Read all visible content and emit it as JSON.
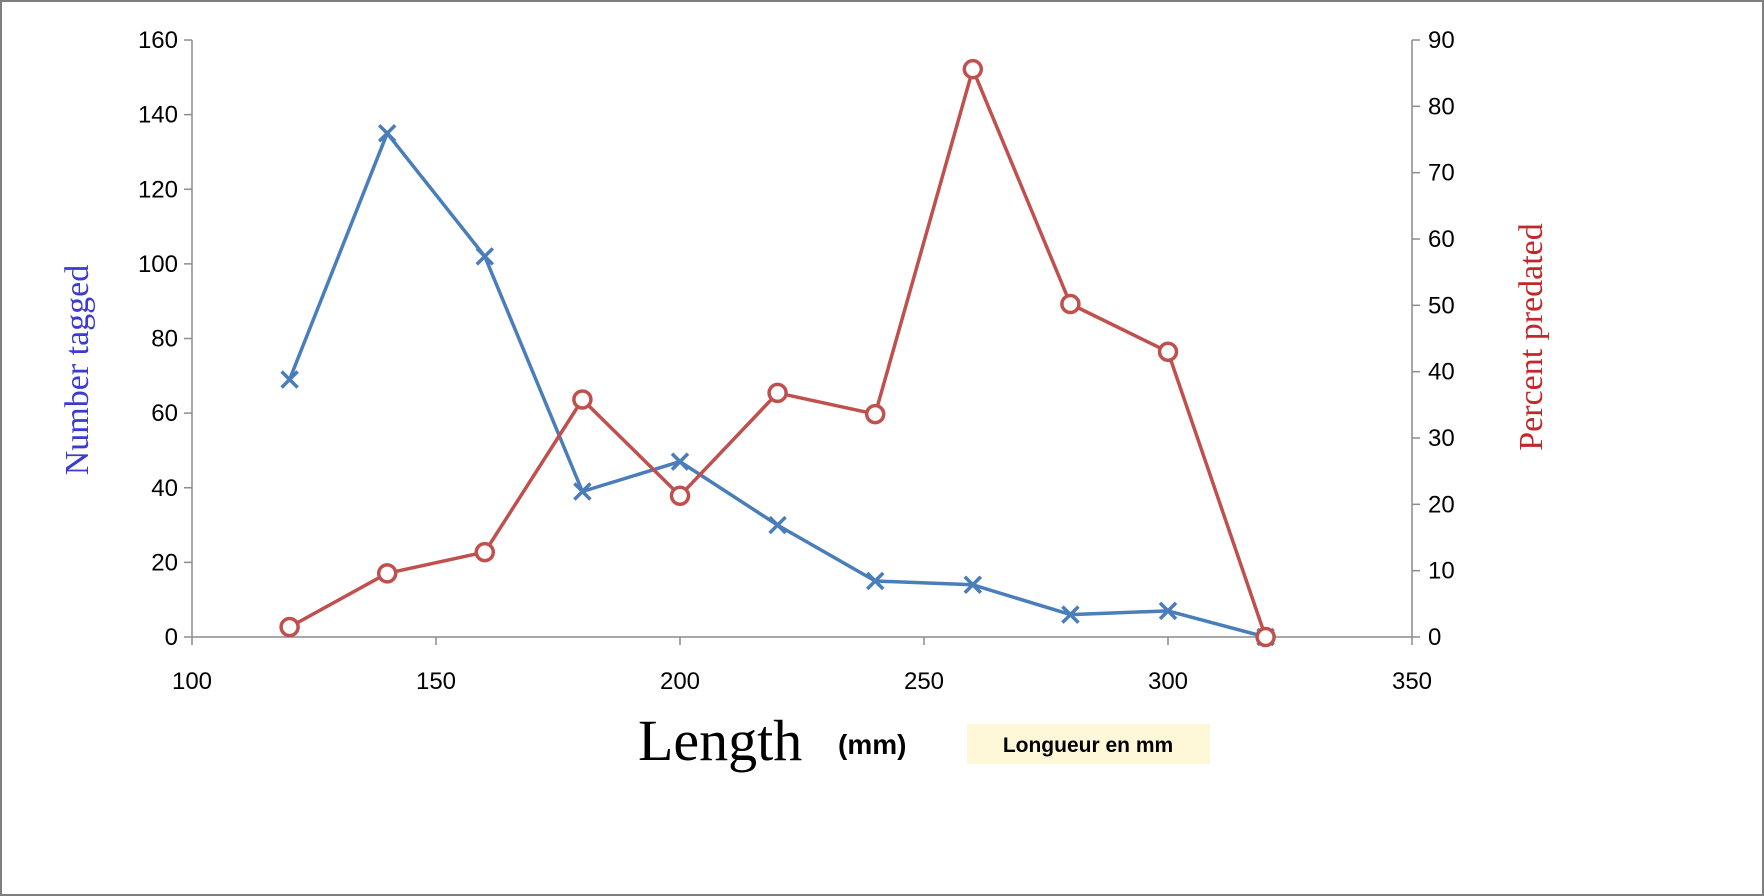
{
  "chart_data": {
    "type": "line",
    "x": [
      120,
      140,
      160,
      180,
      200,
      220,
      240,
      260,
      280,
      300,
      320
    ],
    "series": [
      {
        "name": "Number tagged",
        "axis": "left",
        "color": "#4a7ebb",
        "marker": "x",
        "values": [
          69,
          135,
          102,
          39,
          47,
          30,
          15,
          14,
          6,
          7,
          0
        ]
      },
      {
        "name": "Percent predated",
        "axis": "right",
        "color": "#c0504d",
        "marker": "circle",
        "values": [
          1.5,
          9.6,
          12.8,
          35.8,
          21.3,
          36.8,
          33.6,
          85.6,
          50.2,
          43.0,
          0
        ]
      }
    ],
    "xlim": [
      100,
      350
    ],
    "xticks": [
      100,
      150,
      200,
      250,
      300,
      350
    ],
    "ylim_left": [
      0,
      160
    ],
    "yticks_left": [
      0,
      20,
      40,
      60,
      80,
      100,
      120,
      140,
      160
    ],
    "ylim_right": [
      0,
      90
    ],
    "yticks_right": [
      0,
      10,
      20,
      30,
      40,
      50,
      60,
      70,
      80,
      90
    ],
    "xlabel": "Length",
    "xlabel_unit": "(mm)",
    "ylabel_left": "Number tagged",
    "ylabel_right": "Percent predated",
    "annotation": "Longueur en mm",
    "annotation_bg": "#fff8d8",
    "left_label_color": "#3b3bd0",
    "right_label_color": "#c0282a",
    "grid": false,
    "legend": "none"
  }
}
